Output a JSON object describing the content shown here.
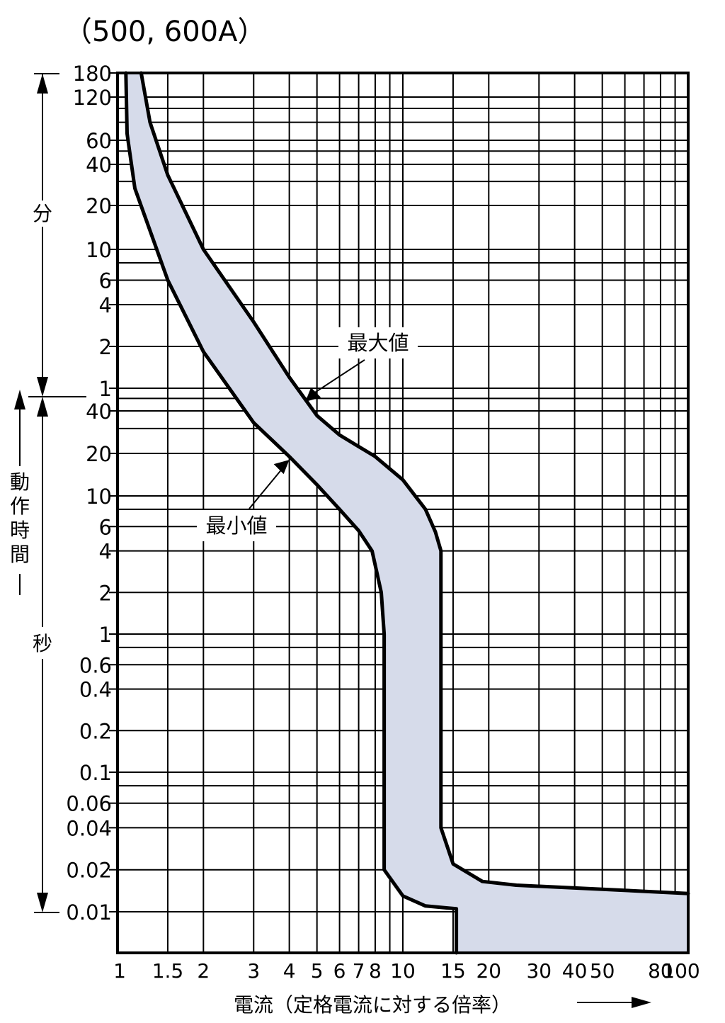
{
  "title": "（500,  600A）",
  "chart_data": {
    "type": "area",
    "title": "（500,  600A）",
    "xlabel": "電流（定格電流に対する倍率）",
    "ylabel_sections": {
      "minutes": "分",
      "seconds": "動作時間",
      "seconds_lower": "秒"
    },
    "x_scale": "log",
    "x_range": [
      1,
      100
    ],
    "x_tick_labels": [
      {
        "v": 1,
        "t": "1"
      },
      {
        "v": 1.5,
        "t": "1.5"
      },
      {
        "v": 2,
        "t": "2"
      },
      {
        "v": 3,
        "t": "3"
      },
      {
        "v": 4,
        "t": "4"
      },
      {
        "v": 5,
        "t": "5"
      },
      {
        "v": 6,
        "t": "6"
      },
      {
        "v": 7,
        "t": "7"
      },
      {
        "v": 8,
        "t": "8"
      },
      {
        "v": 10,
        "t": "10"
      },
      {
        "v": 15,
        "t": "15"
      },
      {
        "v": 20,
        "t": "20"
      },
      {
        "v": 30,
        "t": "30"
      },
      {
        "v": 40,
        "t": "40"
      },
      {
        "v": 50,
        "t": "50"
      },
      {
        "v": 80,
        "t": "80"
      },
      {
        "v": 100,
        "t": "100"
      }
    ],
    "y_scale": "log",
    "y_unit": "seconds",
    "y_range_seconds": [
      0.005,
      10800
    ],
    "y_tick_labels": [
      {
        "v": 10800,
        "t": "180"
      },
      {
        "v": 7200,
        "t": "120"
      },
      {
        "v": 3600,
        "t": "60"
      },
      {
        "v": 2400,
        "t": "40"
      },
      {
        "v": 1200,
        "t": "20"
      },
      {
        "v": 600,
        "t": "10"
      },
      {
        "v": 360,
        "t": "6"
      },
      {
        "v": 240,
        "t": "4"
      },
      {
        "v": 120,
        "t": "2"
      },
      {
        "v": 60,
        "t": "1"
      },
      {
        "v": 40,
        "t": "40"
      },
      {
        "v": 20,
        "t": "20"
      },
      {
        "v": 10,
        "t": "10"
      },
      {
        "v": 6,
        "t": "6"
      },
      {
        "v": 4,
        "t": "4"
      },
      {
        "v": 2,
        "t": "2"
      },
      {
        "v": 1,
        "t": "1"
      },
      {
        "v": 0.6,
        "t": "0.6"
      },
      {
        "v": 0.4,
        "t": "0.4"
      },
      {
        "v": 0.2,
        "t": "0.2"
      },
      {
        "v": 0.1,
        "t": "0.1"
      },
      {
        "v": 0.06,
        "t": "0.06"
      },
      {
        "v": 0.04,
        "t": "0.04"
      },
      {
        "v": 0.02,
        "t": "0.02"
      },
      {
        "v": 0.01,
        "t": "0.01"
      }
    ],
    "y_grid_lines": [
      10800,
      7200,
      6000,
      4800,
      3600,
      3000,
      2400,
      1800,
      1200,
      600,
      480,
      360,
      240,
      120,
      60,
      50,
      40,
      30,
      20,
      10,
      8,
      6,
      4,
      2,
      1,
      0.8,
      0.6,
      0.4,
      0.2,
      0.1,
      0.08,
      0.06,
      0.04,
      0.02,
      0.01
    ],
    "x_grid_lines": [
      1.5,
      2,
      3,
      4,
      5,
      6,
      7,
      8,
      9,
      10,
      15,
      20,
      30,
      40,
      50,
      60,
      70,
      80,
      90
    ],
    "series": [
      {
        "name": "最大値",
        "points": [
          [
            1.21,
            10800
          ],
          [
            1.3,
            4800
          ],
          [
            1.5,
            2000
          ],
          [
            2.0,
            600
          ],
          [
            3.0,
            180
          ],
          [
            4.0,
            72
          ],
          [
            5.0,
            37
          ],
          [
            6.0,
            27
          ],
          [
            8.0,
            19
          ],
          [
            10.0,
            13
          ],
          [
            12.0,
            8
          ],
          [
            13.0,
            5.5
          ],
          [
            13.6,
            4
          ],
          [
            13.6,
            2
          ],
          [
            13.6,
            0.1
          ],
          [
            13.6,
            0.04
          ],
          [
            15.0,
            0.022
          ],
          [
            19.0,
            0.0165
          ],
          [
            25.0,
            0.0155
          ],
          [
            50.0,
            0.0145
          ],
          [
            100.0,
            0.0135
          ]
        ]
      },
      {
        "name": "最小値",
        "points": [
          [
            1.07,
            10800
          ],
          [
            1.08,
            4000
          ],
          [
            1.15,
            1600
          ],
          [
            1.5,
            360
          ],
          [
            2.0,
            110
          ],
          [
            3.0,
            33
          ],
          [
            4.0,
            19
          ],
          [
            5.0,
            12
          ],
          [
            6.0,
            8
          ],
          [
            7.0,
            5.6
          ],
          [
            7.8,
            4
          ],
          [
            8.4,
            2
          ],
          [
            8.6,
            1
          ],
          [
            8.6,
            0.1
          ],
          [
            8.6,
            0.02
          ],
          [
            10.0,
            0.013
          ],
          [
            12.0,
            0.011
          ],
          [
            15.4,
            0.0105
          ],
          [
            15.4,
            0.005
          ]
        ]
      }
    ],
    "fill_color": "#d6dbea",
    "line_color": "#000000",
    "annotations": [
      {
        "text": "最大値",
        "target": [
          4.5,
          46
        ]
      },
      {
        "text": "最小値",
        "target": [
          4.0,
          18
        ]
      }
    ],
    "grid": true
  }
}
